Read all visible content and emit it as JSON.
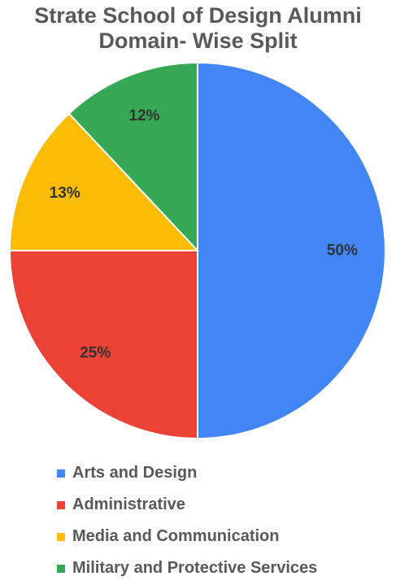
{
  "chart_data": {
    "type": "pie",
    "title": "Strate School of Design Alumni Domain- Wise Split",
    "title_lines": [
      "Strate School of Design Alumni",
      "Domain- Wise Split"
    ],
    "categories": [
      "Arts and Design",
      "Administrative",
      "Media and Communication",
      "Military and Protective Services"
    ],
    "values": [
      50,
      25,
      13,
      12
    ],
    "data_labels": [
      "50%",
      "25%",
      "13%",
      "12%"
    ],
    "colors": [
      "#4285F4",
      "#EA4335",
      "#FBBC04",
      "#34A853"
    ],
    "legend_position": "bottom"
  }
}
